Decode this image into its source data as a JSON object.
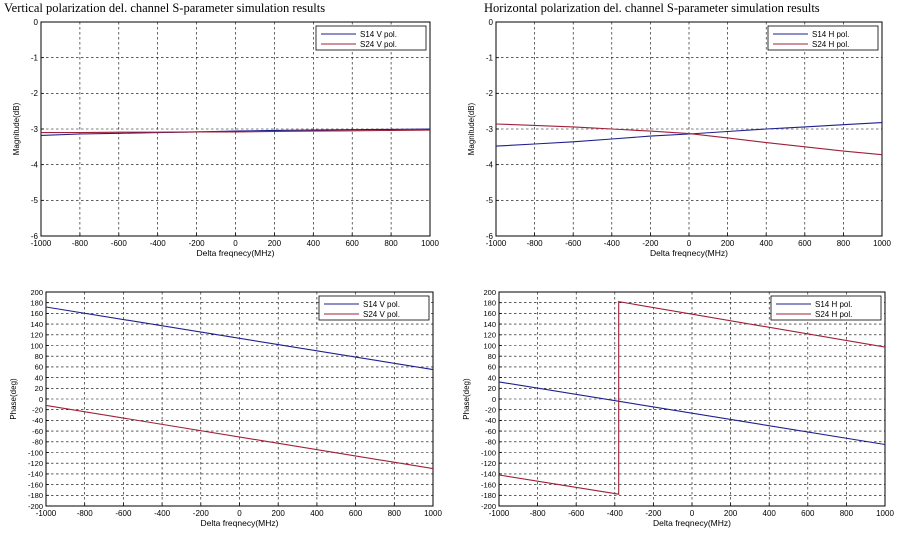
{
  "figure_titles": {
    "left": "Vertical polarization del. channel S-parameter simulation results",
    "right": "Horizontal polarization del. channel S-parameter simulation results"
  },
  "chart_data": [
    {
      "type": "line",
      "title": "",
      "xlabel": "Delta freqnecy(MHz)",
      "ylabel": "Magnitude(dB)",
      "xlim": [
        -1000,
        1000
      ],
      "ylim": [
        -6,
        0
      ],
      "xticks": [
        -1000,
        -800,
        -600,
        -400,
        -200,
        0,
        200,
        400,
        600,
        800,
        1000
      ],
      "yticks": [
        -6,
        -5,
        -4,
        -3,
        -2,
        -1,
        0
      ],
      "grid": true,
      "legend": "top-right",
      "series": [
        {
          "name": "S14 V pol.",
          "color": "#1f1f8f",
          "x": [
            -1000,
            -800,
            -600,
            -400,
            -200,
            0,
            200,
            400,
            600,
            800,
            1000
          ],
          "y": [
            -3.18,
            -3.14,
            -3.12,
            -3.1,
            -3.08,
            -3.06,
            -3.04,
            -3.03,
            -3.02,
            -3.01,
            -3.0
          ]
        },
        {
          "name": "S24 V pol.",
          "color": "#a0203a",
          "x": [
            -1000,
            -800,
            -600,
            -400,
            -200,
            0,
            200,
            400,
            600,
            800,
            1000
          ],
          "y": [
            -3.1,
            -3.1,
            -3.09,
            -3.09,
            -3.08,
            -3.08,
            -3.07,
            -3.06,
            -3.05,
            -3.04,
            -3.03
          ]
        }
      ]
    },
    {
      "type": "line",
      "title": "",
      "xlabel": "Delta freqnecy(MHz)",
      "ylabel": "Magnitude(dB)",
      "xlim": [
        -1000,
        1000
      ],
      "ylim": [
        -6,
        0
      ],
      "xticks": [
        -1000,
        -800,
        -600,
        -400,
        -200,
        0,
        200,
        400,
        600,
        800,
        1000
      ],
      "yticks": [
        -6,
        -5,
        -4,
        -3,
        -2,
        -1,
        0
      ],
      "grid": true,
      "legend": "top-right",
      "series": [
        {
          "name": "S14 H pol.",
          "color": "#1f1f8f",
          "x": [
            -1000,
            -800,
            -600,
            -400,
            -200,
            0,
            200,
            400,
            600,
            800,
            1000
          ],
          "y": [
            -3.48,
            -3.42,
            -3.36,
            -3.28,
            -3.2,
            -3.14,
            -3.07,
            -3.0,
            -2.94,
            -2.88,
            -2.82
          ]
        },
        {
          "name": "S24 H pol.",
          "color": "#a0203a",
          "x": [
            -1000,
            -800,
            -600,
            -400,
            -200,
            0,
            200,
            400,
            600,
            800,
            1000
          ],
          "y": [
            -2.86,
            -2.9,
            -2.94,
            -3.0,
            -3.06,
            -3.13,
            -3.25,
            -3.38,
            -3.5,
            -3.62,
            -3.72
          ]
        }
      ]
    },
    {
      "type": "line",
      "title": "",
      "xlabel": "Delta freqnecy(MHz)",
      "ylabel": "Phase(deg)",
      "xlim": [
        -1000,
        1000
      ],
      "ylim": [
        -200,
        200
      ],
      "xticks": [
        -1000,
        -800,
        -600,
        -400,
        -200,
        0,
        200,
        400,
        600,
        800,
        1000
      ],
      "yticks": [
        -200,
        -180,
        -160,
        -140,
        -120,
        -100,
        -80,
        -60,
        -40,
        -20,
        0,
        20,
        40,
        60,
        80,
        100,
        120,
        140,
        160,
        180,
        200
      ],
      "grid": true,
      "legend": "top-right",
      "series": [
        {
          "name": "S14 V pol.",
          "color": "#1f1f8f",
          "x": [
            -1000,
            1000
          ],
          "y": [
            172,
            55
          ]
        },
        {
          "name": "S24 V pol.",
          "color": "#a0203a",
          "x": [
            -1000,
            1000
          ],
          "y": [
            -12,
            -130
          ]
        }
      ]
    },
    {
      "type": "line",
      "title": "",
      "xlabel": "Delta freqnecy(MHz)",
      "ylabel": "Phase(deg)",
      "xlim": [
        -1000,
        1000
      ],
      "ylim": [
        -200,
        200
      ],
      "xticks": [
        -1000,
        -800,
        -600,
        -400,
        -200,
        0,
        200,
        400,
        600,
        800,
        1000
      ],
      "yticks": [
        -200,
        -180,
        -160,
        -140,
        -120,
        -100,
        -80,
        -60,
        -40,
        -20,
        0,
        20,
        40,
        60,
        80,
        100,
        120,
        140,
        160,
        180,
        200
      ],
      "grid": true,
      "legend": "top-right",
      "series": [
        {
          "name": "S14 H pol.",
          "color": "#1f1f8f",
          "x": [
            -1000,
            1000
          ],
          "y": [
            32,
            -85
          ]
        },
        {
          "name": "S24 H pol.",
          "color": "#a0203a",
          "x": [
            -1000,
            -380,
            -380,
            1000
          ],
          "y": [
            -142,
            -178,
            182,
            97
          ]
        }
      ]
    }
  ]
}
